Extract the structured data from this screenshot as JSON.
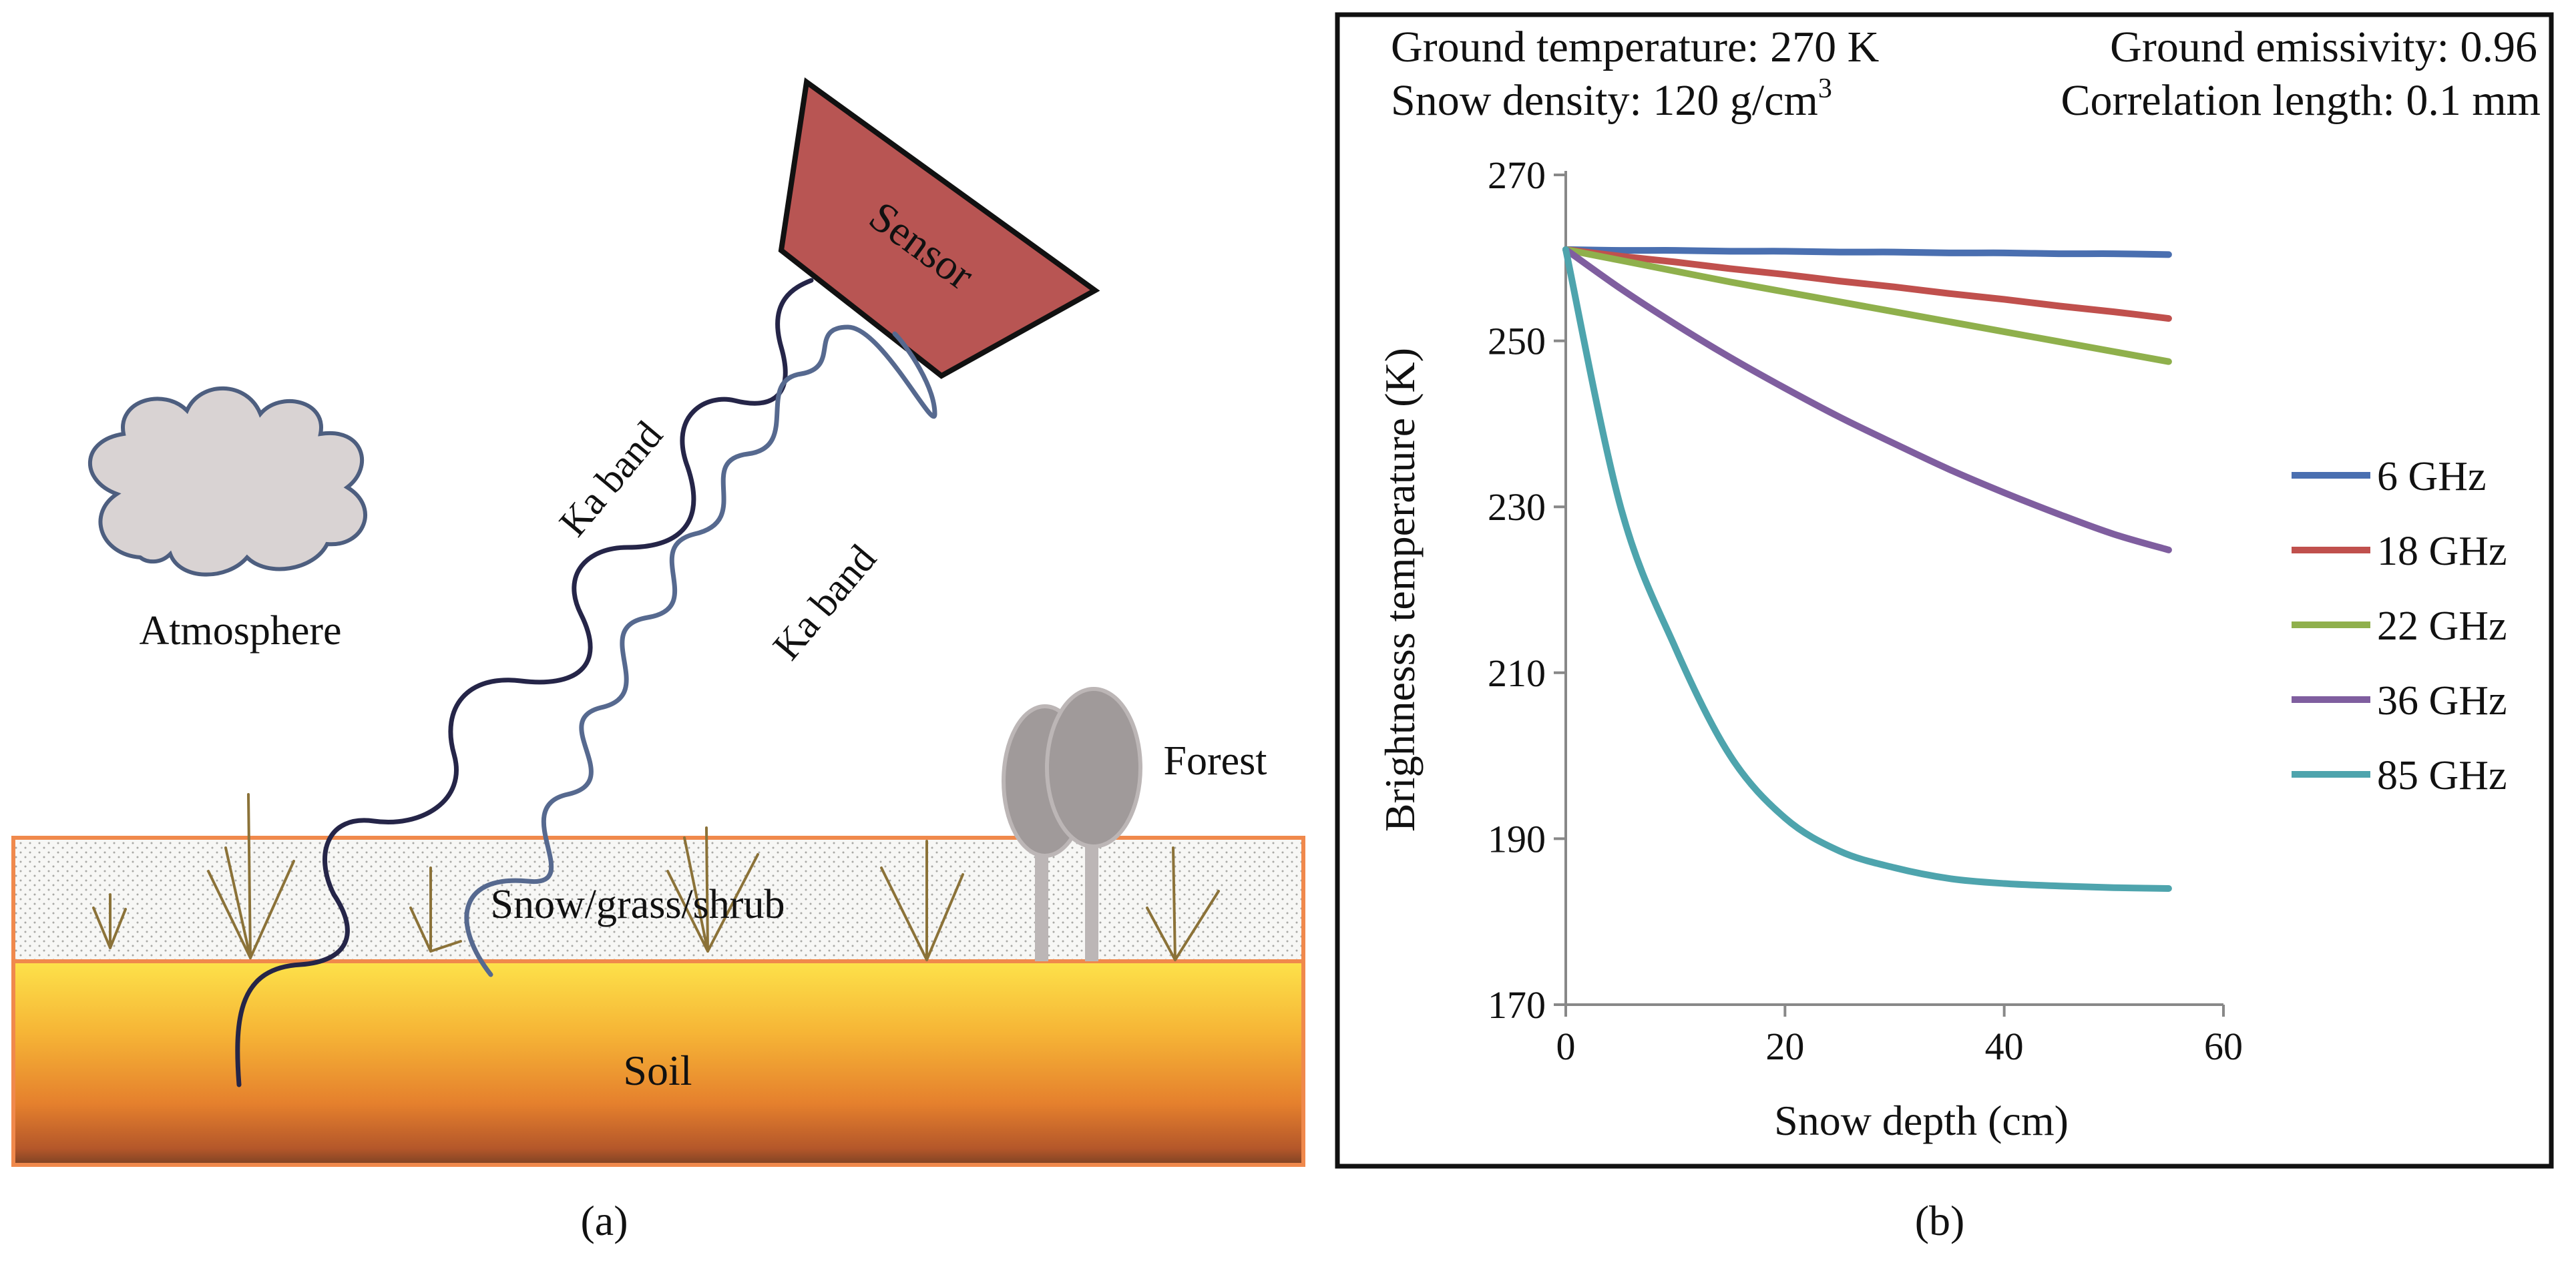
{
  "panel_a": {
    "caption": "(a)",
    "labels": {
      "sensor": "Sensor",
      "atmosphere": "Atmosphere",
      "forest": "Forest",
      "snow_layer": "Snow/grass/shrub",
      "soil": "Soil",
      "wave_1": "Ka band",
      "wave_2": "Ka band"
    },
    "colors": {
      "sensor_fill": "#b85553",
      "cloud_fill": "#d9d3d3",
      "cloud_stroke": "#4d5e7f",
      "layer_border": "#f0894c",
      "wave_1": "#252548",
      "wave_2": "#56698f",
      "grass": "#8b7238",
      "tree_crown": "#a09a9a",
      "tree_trunk": "#bcb6b6"
    }
  },
  "panel_b": {
    "caption": "(b)",
    "header": {
      "ground_temperature": "Ground temperature: 270 K",
      "ground_emissivity": "Ground emissivity: 0.96",
      "snow_density": "Snow density: 120 g/cm",
      "snow_density_exp": "3",
      "correlation_length": "Correlation length: 0.1 mm"
    }
  },
  "chart_data": {
    "type": "line",
    "title": "",
    "xlabel": "Snow depth (cm)",
    "ylabel": "Brightnesss temperature (K)",
    "xlim": [
      0,
      60
    ],
    "ylim": [
      170,
      270
    ],
    "xticks": [
      0,
      20,
      40,
      60
    ],
    "yticks": [
      170,
      190,
      210,
      230,
      250,
      270
    ],
    "grid": false,
    "legend_position": "right",
    "x": [
      0,
      5,
      10,
      15,
      20,
      25,
      30,
      35,
      40,
      45,
      50,
      55
    ],
    "series": [
      {
        "name": "6 GHz",
        "color": "#4a6fb0",
        "values": [
          261,
          260.9,
          260.9,
          260.8,
          260.8,
          260.7,
          260.7,
          260.6,
          260.6,
          260.5,
          260.5,
          260.4
        ]
      },
      {
        "name": "18 GHz",
        "color": "#c0504d",
        "values": [
          261,
          260.2,
          259.5,
          258.7,
          258.0,
          257.2,
          256.5,
          255.7,
          255.0,
          254.2,
          253.5,
          252.7
        ]
      },
      {
        "name": "22 GHz",
        "color": "#8fb04c",
        "values": [
          261,
          259.7,
          258.4,
          257.1,
          255.9,
          254.7,
          253.5,
          252.3,
          251.1,
          249.9,
          248.7,
          247.5
        ]
      },
      {
        "name": "36 GHz",
        "color": "#7f5e9f",
        "values": [
          261,
          256.3,
          252.0,
          248.0,
          244.3,
          240.8,
          237.6,
          234.5,
          231.7,
          229.1,
          226.7,
          224.8
        ]
      },
      {
        "name": "85 GHz",
        "color": "#4ea4ad",
        "values": [
          261,
          230.0,
          213.0,
          200.0,
          192.5,
          188.5,
          186.5,
          185.2,
          184.6,
          184.3,
          184.1,
          184.0
        ]
      }
    ]
  }
}
